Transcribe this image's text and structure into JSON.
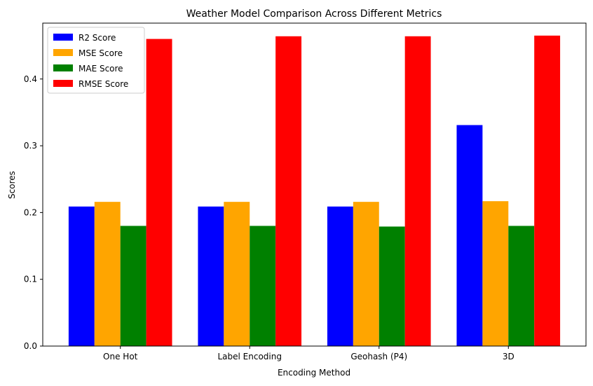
{
  "chart_data": {
    "type": "bar",
    "title": "Weather Model Comparison Across Different Metrics",
    "xlabel": "Encoding Method",
    "ylabel": "Scores",
    "categories": [
      "One Hot",
      "Label Encoding",
      "Geohash (P4)",
      "3D"
    ],
    "series": [
      {
        "name": "R2 Score",
        "color": "#0000ff",
        "values": [
          0.209,
          0.209,
          0.209,
          0.331
        ]
      },
      {
        "name": "MSE Score",
        "color": "#ffa500",
        "values": [
          0.216,
          0.216,
          0.216,
          0.217
        ]
      },
      {
        "name": "MAE Score",
        "color": "#008000",
        "values": [
          0.18,
          0.18,
          0.179,
          0.18
        ]
      },
      {
        "name": "RMSE Score",
        "color": "#ff0000",
        "values": [
          0.46,
          0.464,
          0.464,
          0.465
        ]
      }
    ],
    "ylim": [
      0,
      0.4837
    ],
    "yticks": [
      0.0,
      0.1,
      0.2,
      0.3,
      0.4
    ],
    "ytick_labels": [
      "0.0",
      "0.1",
      "0.2",
      "0.3",
      "0.4"
    ],
    "grid": false,
    "legend_position": "top-left"
  }
}
